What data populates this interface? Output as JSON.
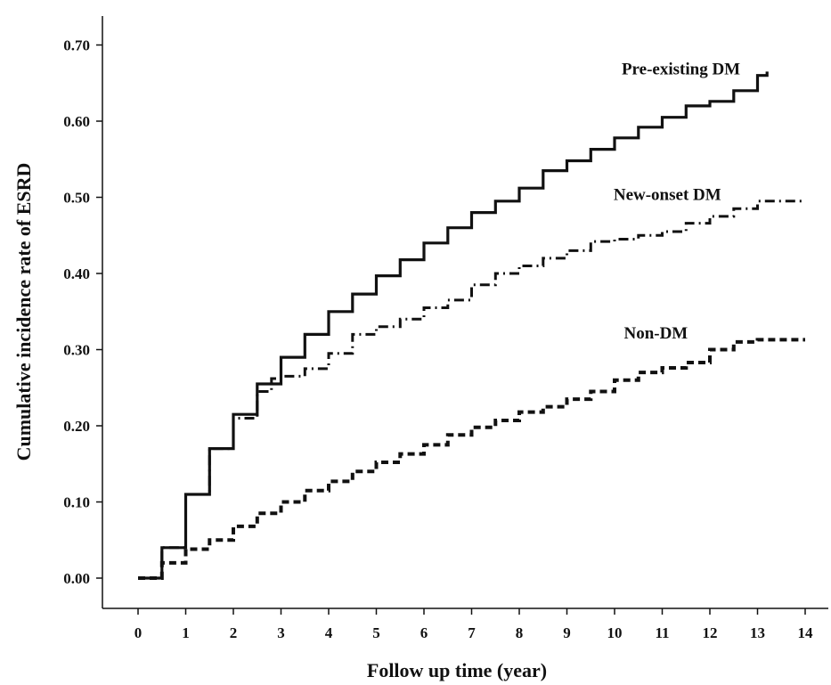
{
  "chart_data": {
    "type": "line",
    "title": "",
    "xlabel": "Follow up time (year)",
    "ylabel": "Cumulative incidence rate of ESRD",
    "xlim": [
      0,
      14
    ],
    "ylim": [
      0,
      0.7
    ],
    "x_ticks": [
      "0",
      "1",
      "2",
      "3",
      "4",
      "5",
      "6",
      "7",
      "8",
      "9",
      "10",
      "11",
      "12",
      "13",
      "14"
    ],
    "y_ticks": [
      "0.00",
      "0.10",
      "0.20",
      "0.30",
      "0.40",
      "0.50",
      "0.60",
      "0.70"
    ],
    "grid": false,
    "series": [
      {
        "name": "Pre-existing DM",
        "style": "solid",
        "label_anchor": [
          12.6,
          0.665
        ],
        "points": [
          [
            0,
            0
          ],
          [
            0.3,
            0
          ],
          [
            0.5,
            0.04
          ],
          [
            1,
            0.11
          ],
          [
            1.5,
            0.17
          ],
          [
            2,
            0.215
          ],
          [
            2.5,
            0.255
          ],
          [
            3,
            0.29
          ],
          [
            3.5,
            0.32
          ],
          [
            4,
            0.35
          ],
          [
            4.5,
            0.373
          ],
          [
            5,
            0.397
          ],
          [
            5.5,
            0.418
          ],
          [
            6,
            0.44
          ],
          [
            6.5,
            0.46
          ],
          [
            7,
            0.48
          ],
          [
            7.5,
            0.495
          ],
          [
            8,
            0.512
          ],
          [
            8.5,
            0.535
          ],
          [
            9,
            0.548
          ],
          [
            9.5,
            0.563
          ],
          [
            10,
            0.578
          ],
          [
            10.5,
            0.592
          ],
          [
            11,
            0.605
          ],
          [
            11.5,
            0.62
          ],
          [
            12,
            0.626
          ],
          [
            12.5,
            0.64
          ],
          [
            13,
            0.66
          ],
          [
            13.2,
            0.665
          ]
        ]
      },
      {
        "name": "New-onset DM",
        "style": "dashdot",
        "label_anchor": [
          12.2,
          0.5
        ],
        "points": [
          [
            0,
            0
          ],
          [
            0.3,
            0
          ],
          [
            0.5,
            0.04
          ],
          [
            1,
            0.11
          ],
          [
            1.5,
            0.17
          ],
          [
            2,
            0.21
          ],
          [
            2.5,
            0.245
          ],
          [
            2.8,
            0.262
          ],
          [
            3,
            0.265
          ],
          [
            3.5,
            0.275
          ],
          [
            4,
            0.295
          ],
          [
            4.5,
            0.32
          ],
          [
            5,
            0.33
          ],
          [
            5.5,
            0.34
          ],
          [
            6,
            0.355
          ],
          [
            6.5,
            0.365
          ],
          [
            7,
            0.385
          ],
          [
            7.5,
            0.4
          ],
          [
            8,
            0.41
          ],
          [
            8.5,
            0.42
          ],
          [
            9,
            0.43
          ],
          [
            9.5,
            0.442
          ],
          [
            10,
            0.445
          ],
          [
            10.5,
            0.45
          ],
          [
            11,
            0.455
          ],
          [
            11.5,
            0.466
          ],
          [
            12,
            0.475
          ],
          [
            12.5,
            0.485
          ],
          [
            13,
            0.495
          ],
          [
            14,
            0.495
          ]
        ]
      },
      {
        "name": "Non-DM",
        "style": "dashed",
        "label_anchor": [
          11.5,
          0.318
        ],
        "points": [
          [
            0,
            0
          ],
          [
            0.3,
            0
          ],
          [
            0.5,
            0.02
          ],
          [
            1,
            0.038
          ],
          [
            1.5,
            0.05
          ],
          [
            2,
            0.068
          ],
          [
            2.5,
            0.085
          ],
          [
            3,
            0.1
          ],
          [
            3.5,
            0.115
          ],
          [
            4,
            0.127
          ],
          [
            4.5,
            0.14
          ],
          [
            5,
            0.152
          ],
          [
            5.5,
            0.163
          ],
          [
            6,
            0.175
          ],
          [
            6.5,
            0.188
          ],
          [
            7,
            0.198
          ],
          [
            7.5,
            0.207
          ],
          [
            8,
            0.218
          ],
          [
            8.5,
            0.225
          ],
          [
            9,
            0.235
          ],
          [
            9.5,
            0.245
          ],
          [
            10,
            0.26
          ],
          [
            10.5,
            0.27
          ],
          [
            11,
            0.276
          ],
          [
            11.5,
            0.283
          ],
          [
            12,
            0.3
          ],
          [
            12.5,
            0.31
          ],
          [
            13,
            0.313
          ],
          [
            14,
            0.313
          ]
        ]
      }
    ]
  }
}
